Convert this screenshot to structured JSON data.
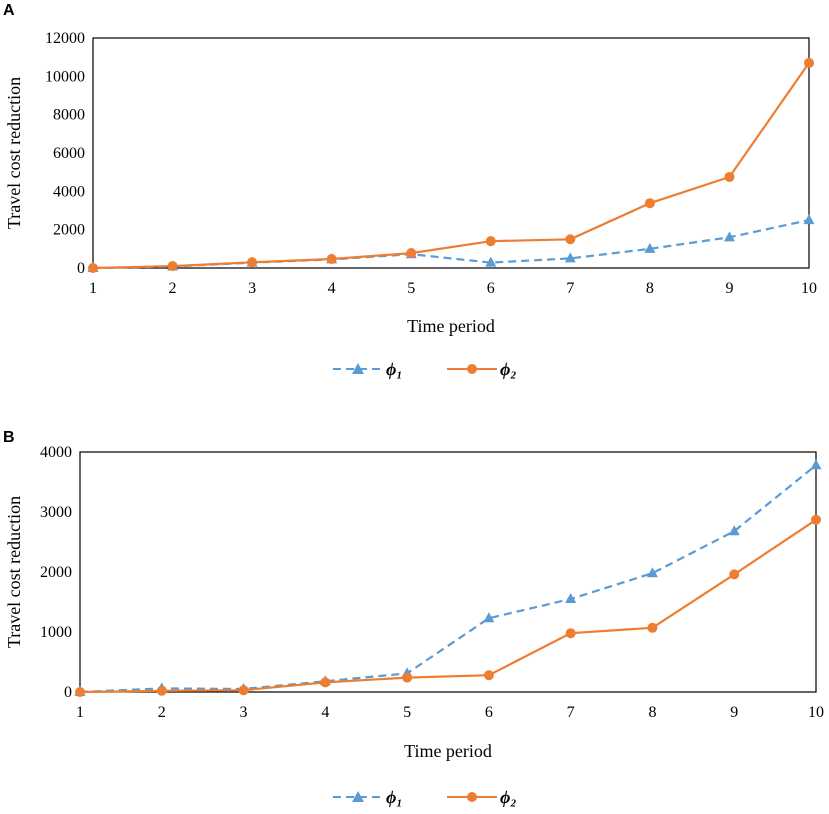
{
  "colors": {
    "series_1": "#5B9BD5",
    "series_2": "#ED7D31",
    "axis": "#000000"
  },
  "chart_data": [
    {
      "panel": "A",
      "type": "line",
      "xlabel": "Time period",
      "ylabel": "Travel cost reduction",
      "categories": [
        "1",
        "2",
        "3",
        "4",
        "5",
        "6",
        "7",
        "8",
        "9",
        "10"
      ],
      "ylim": [
        0,
        12000
      ],
      "yticks": [
        "0",
        "2000",
        "4000",
        "6000",
        "8000",
        "10000",
        "12000"
      ],
      "grid": false,
      "legend_position": "bottom-center",
      "series": [
        {
          "name": "ϕ₁",
          "style": "dashed",
          "marker": "triangle",
          "values": [
            0,
            80,
            280,
            450,
            720,
            280,
            500,
            1000,
            1600,
            2500
          ]
        },
        {
          "name": "ϕ₂",
          "style": "solid",
          "marker": "circle",
          "values": [
            0,
            100,
            300,
            470,
            780,
            1400,
            1500,
            3380,
            4750,
            10700
          ]
        }
      ]
    },
    {
      "panel": "B",
      "type": "line",
      "xlabel": "Time period",
      "ylabel": "Travel cost reduction",
      "categories": [
        "1",
        "2",
        "3",
        "4",
        "5",
        "6",
        "7",
        "8",
        "9",
        "10"
      ],
      "ylim": [
        0,
        4000
      ],
      "yticks": [
        "0",
        "1000",
        "2000",
        "3000",
        "4000"
      ],
      "grid": false,
      "legend_position": "bottom-center",
      "series": [
        {
          "name": "ϕ₁",
          "style": "dashed",
          "marker": "triangle",
          "values": [
            0,
            60,
            50,
            180,
            310,
            1230,
            1550,
            1980,
            2680,
            3780
          ]
        },
        {
          "name": "ϕ₂",
          "style": "solid",
          "marker": "circle",
          "values": [
            0,
            20,
            30,
            160,
            240,
            280,
            980,
            1070,
            1960,
            2870
          ]
        }
      ]
    }
  ]
}
